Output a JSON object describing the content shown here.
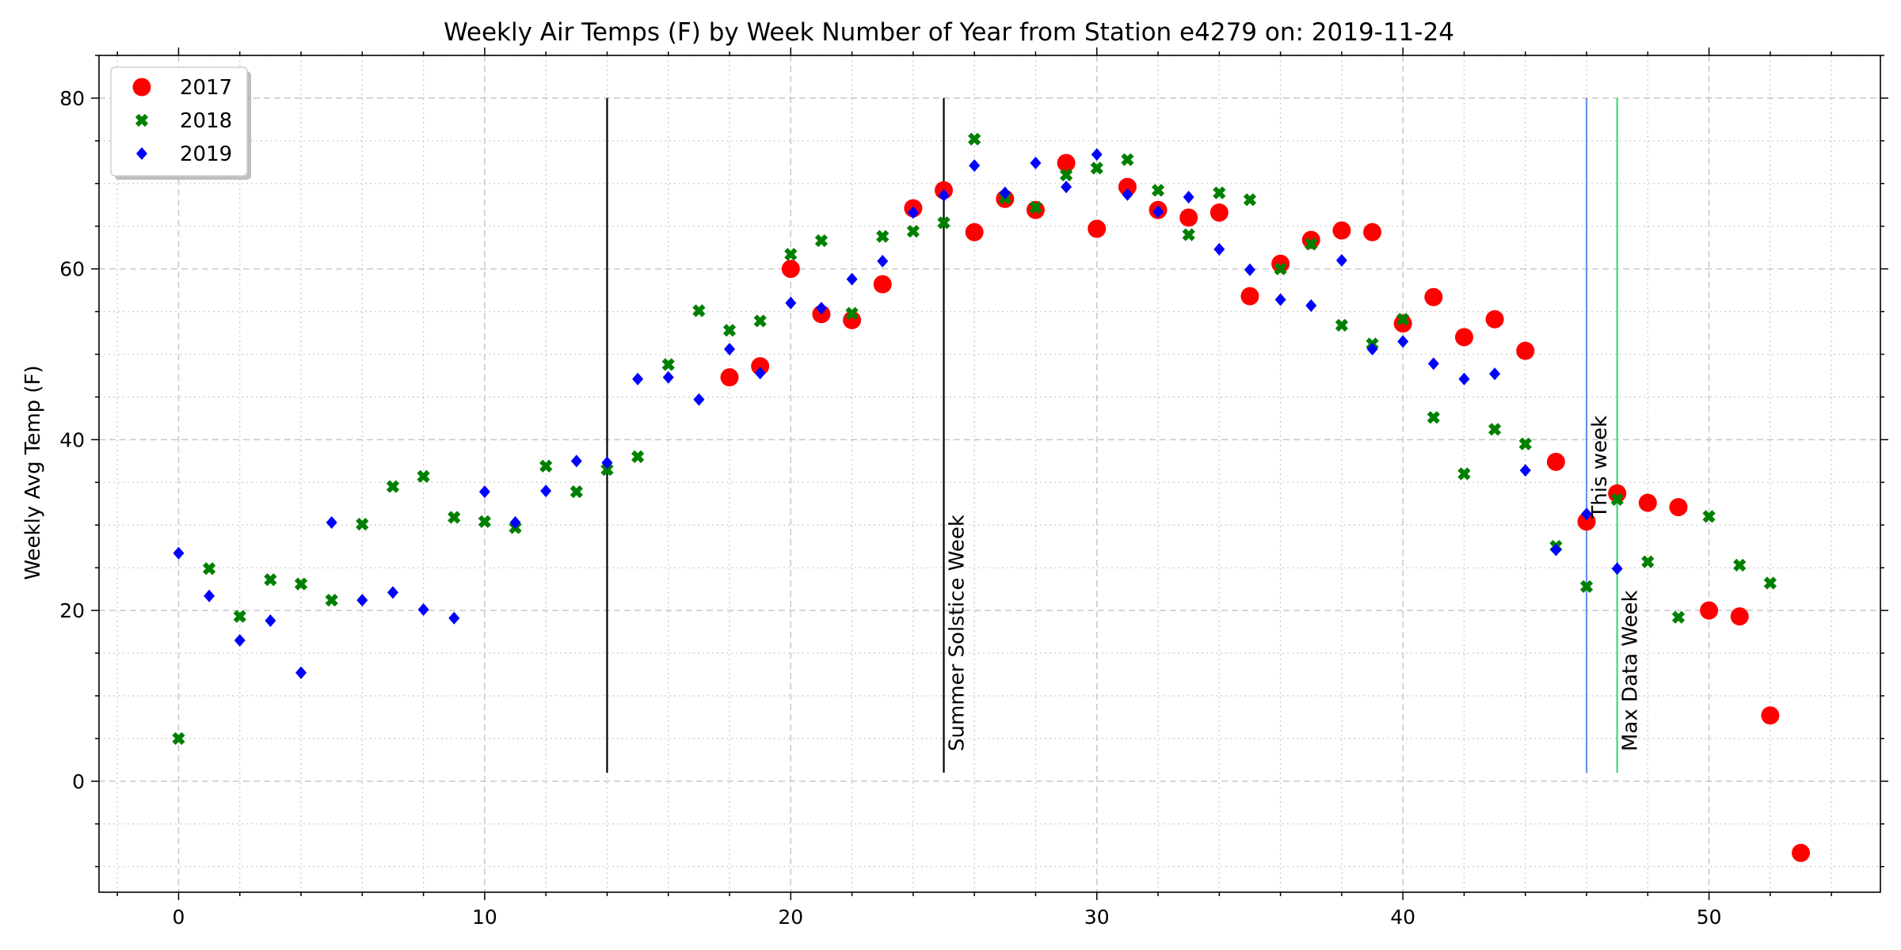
{
  "chart_data": {
    "type": "scatter",
    "title": "Weekly Air Temps (F) by Week Number of Year from Station e4279 on: 2019-11-24",
    "xlabel": "",
    "ylabel": "Weekly Avg Temp (F)",
    "xlim": [
      -2.6,
      55.6
    ],
    "ylim": [
      -13,
      85
    ],
    "xticks": [
      0,
      10,
      20,
      30,
      40,
      50
    ],
    "yticks": [
      0,
      20,
      40,
      60,
      80
    ],
    "grid": true,
    "legend_position": "top-left",
    "series": [
      {
        "name": "2017",
        "marker": "circle",
        "color": "#ff0000",
        "points": [
          [
            18,
            47.3
          ],
          [
            19,
            48.6
          ],
          [
            20,
            60.0
          ],
          [
            21,
            54.7
          ],
          [
            22,
            54.0
          ],
          [
            23,
            58.2
          ],
          [
            24,
            67.1
          ],
          [
            25,
            69.2
          ],
          [
            26,
            64.3
          ],
          [
            27,
            68.2
          ],
          [
            28,
            66.9
          ],
          [
            29,
            72.4
          ],
          [
            30,
            64.7
          ],
          [
            31,
            69.6
          ],
          [
            32,
            66.9
          ],
          [
            33,
            66.0
          ],
          [
            34,
            66.6
          ],
          [
            35,
            56.8
          ],
          [
            36,
            60.6
          ],
          [
            37,
            63.4
          ],
          [
            38,
            64.5
          ],
          [
            39,
            64.3
          ],
          [
            40,
            53.6
          ],
          [
            41,
            56.7
          ],
          [
            42,
            52.0
          ],
          [
            43,
            54.1
          ],
          [
            44,
            50.4
          ],
          [
            45,
            37.4
          ],
          [
            46,
            30.4
          ],
          [
            47,
            33.7
          ],
          [
            48,
            32.6
          ],
          [
            49,
            32.1
          ],
          [
            50,
            20.0
          ],
          [
            51,
            19.3
          ],
          [
            52,
            7.7
          ],
          [
            53,
            -8.4
          ]
        ]
      },
      {
        "name": "2018",
        "marker": "x",
        "color": "#008000",
        "points": [
          [
            0,
            5.0
          ],
          [
            1,
            24.9
          ],
          [
            2,
            19.3
          ],
          [
            3,
            23.6
          ],
          [
            4,
            23.1
          ],
          [
            5,
            21.2
          ],
          [
            6,
            30.1
          ],
          [
            7,
            34.5
          ],
          [
            8,
            35.7
          ],
          [
            9,
            30.9
          ],
          [
            10,
            30.4
          ],
          [
            11,
            29.7
          ],
          [
            12,
            36.9
          ],
          [
            13,
            33.9
          ],
          [
            14,
            36.5
          ],
          [
            15,
            38.0
          ],
          [
            16,
            48.8
          ],
          [
            17,
            55.1
          ],
          [
            18,
            52.8
          ],
          [
            19,
            53.9
          ],
          [
            20,
            61.7
          ],
          [
            21,
            63.3
          ],
          [
            22,
            54.8
          ],
          [
            23,
            63.8
          ],
          [
            24,
            64.4
          ],
          [
            25,
            65.4
          ],
          [
            26,
            75.2
          ],
          [
            27,
            68.3
          ],
          [
            28,
            67.2
          ],
          [
            29,
            71.0
          ],
          [
            30,
            71.8
          ],
          [
            31,
            72.8
          ],
          [
            32,
            69.2
          ],
          [
            33,
            64.0
          ],
          [
            34,
            68.9
          ],
          [
            35,
            68.1
          ],
          [
            36,
            60.0
          ],
          [
            37,
            62.9
          ],
          [
            38,
            53.4
          ],
          [
            39,
            51.2
          ],
          [
            40,
            54.1
          ],
          [
            41,
            42.6
          ],
          [
            42,
            36.0
          ],
          [
            43,
            41.2
          ],
          [
            44,
            39.5
          ],
          [
            45,
            27.5
          ],
          [
            46,
            22.8
          ],
          [
            47,
            33.0
          ],
          [
            48,
            25.7
          ],
          [
            49,
            19.2
          ],
          [
            50,
            31.0
          ],
          [
            51,
            25.3
          ],
          [
            52,
            23.2
          ]
        ]
      },
      {
        "name": "2019",
        "marker": "diamond",
        "color": "#0000ff",
        "points": [
          [
            0,
            26.7
          ],
          [
            1,
            21.7
          ],
          [
            2,
            16.5
          ],
          [
            3,
            18.8
          ],
          [
            4,
            12.7
          ],
          [
            5,
            30.3
          ],
          [
            6,
            21.2
          ],
          [
            7,
            22.1
          ],
          [
            8,
            20.1
          ],
          [
            9,
            19.1
          ],
          [
            10,
            33.9
          ],
          [
            11,
            30.3
          ],
          [
            12,
            34.0
          ],
          [
            13,
            37.5
          ],
          [
            14,
            37.3
          ],
          [
            15,
            47.1
          ],
          [
            16,
            47.3
          ],
          [
            17,
            44.7
          ],
          [
            18,
            50.6
          ],
          [
            19,
            47.8
          ],
          [
            20,
            56.0
          ],
          [
            21,
            55.4
          ],
          [
            22,
            58.8
          ],
          [
            23,
            60.9
          ],
          [
            24,
            66.6
          ],
          [
            25,
            68.6
          ],
          [
            26,
            72.1
          ],
          [
            27,
            68.9
          ],
          [
            28,
            72.4
          ],
          [
            29,
            69.6
          ],
          [
            30,
            73.4
          ],
          [
            31,
            68.7
          ],
          [
            32,
            66.7
          ],
          [
            33,
            68.4
          ],
          [
            34,
            62.3
          ],
          [
            35,
            59.9
          ],
          [
            36,
            56.4
          ],
          [
            37,
            55.7
          ],
          [
            38,
            61.0
          ],
          [
            39,
            50.6
          ],
          [
            40,
            51.5
          ],
          [
            41,
            48.9
          ],
          [
            42,
            47.1
          ],
          [
            43,
            47.7
          ],
          [
            44,
            36.4
          ],
          [
            45,
            27.1
          ],
          [
            46,
            31.3
          ],
          [
            47,
            24.9
          ]
        ]
      }
    ],
    "vertical_lines": [
      {
        "x": 14,
        "y_range": [
          1,
          80
        ],
        "color": "#000000",
        "label": ""
      },
      {
        "x": 25,
        "y_range": [
          1,
          80
        ],
        "color": "#000000",
        "label": "Summer Solstice Week"
      },
      {
        "x": 46,
        "y_range": [
          1,
          80
        ],
        "color": "#6495ed",
        "label": "This week"
      },
      {
        "x": 47,
        "y_range": [
          1,
          80
        ],
        "color": "#3cd97a",
        "label": "Max Data Week"
      }
    ]
  }
}
